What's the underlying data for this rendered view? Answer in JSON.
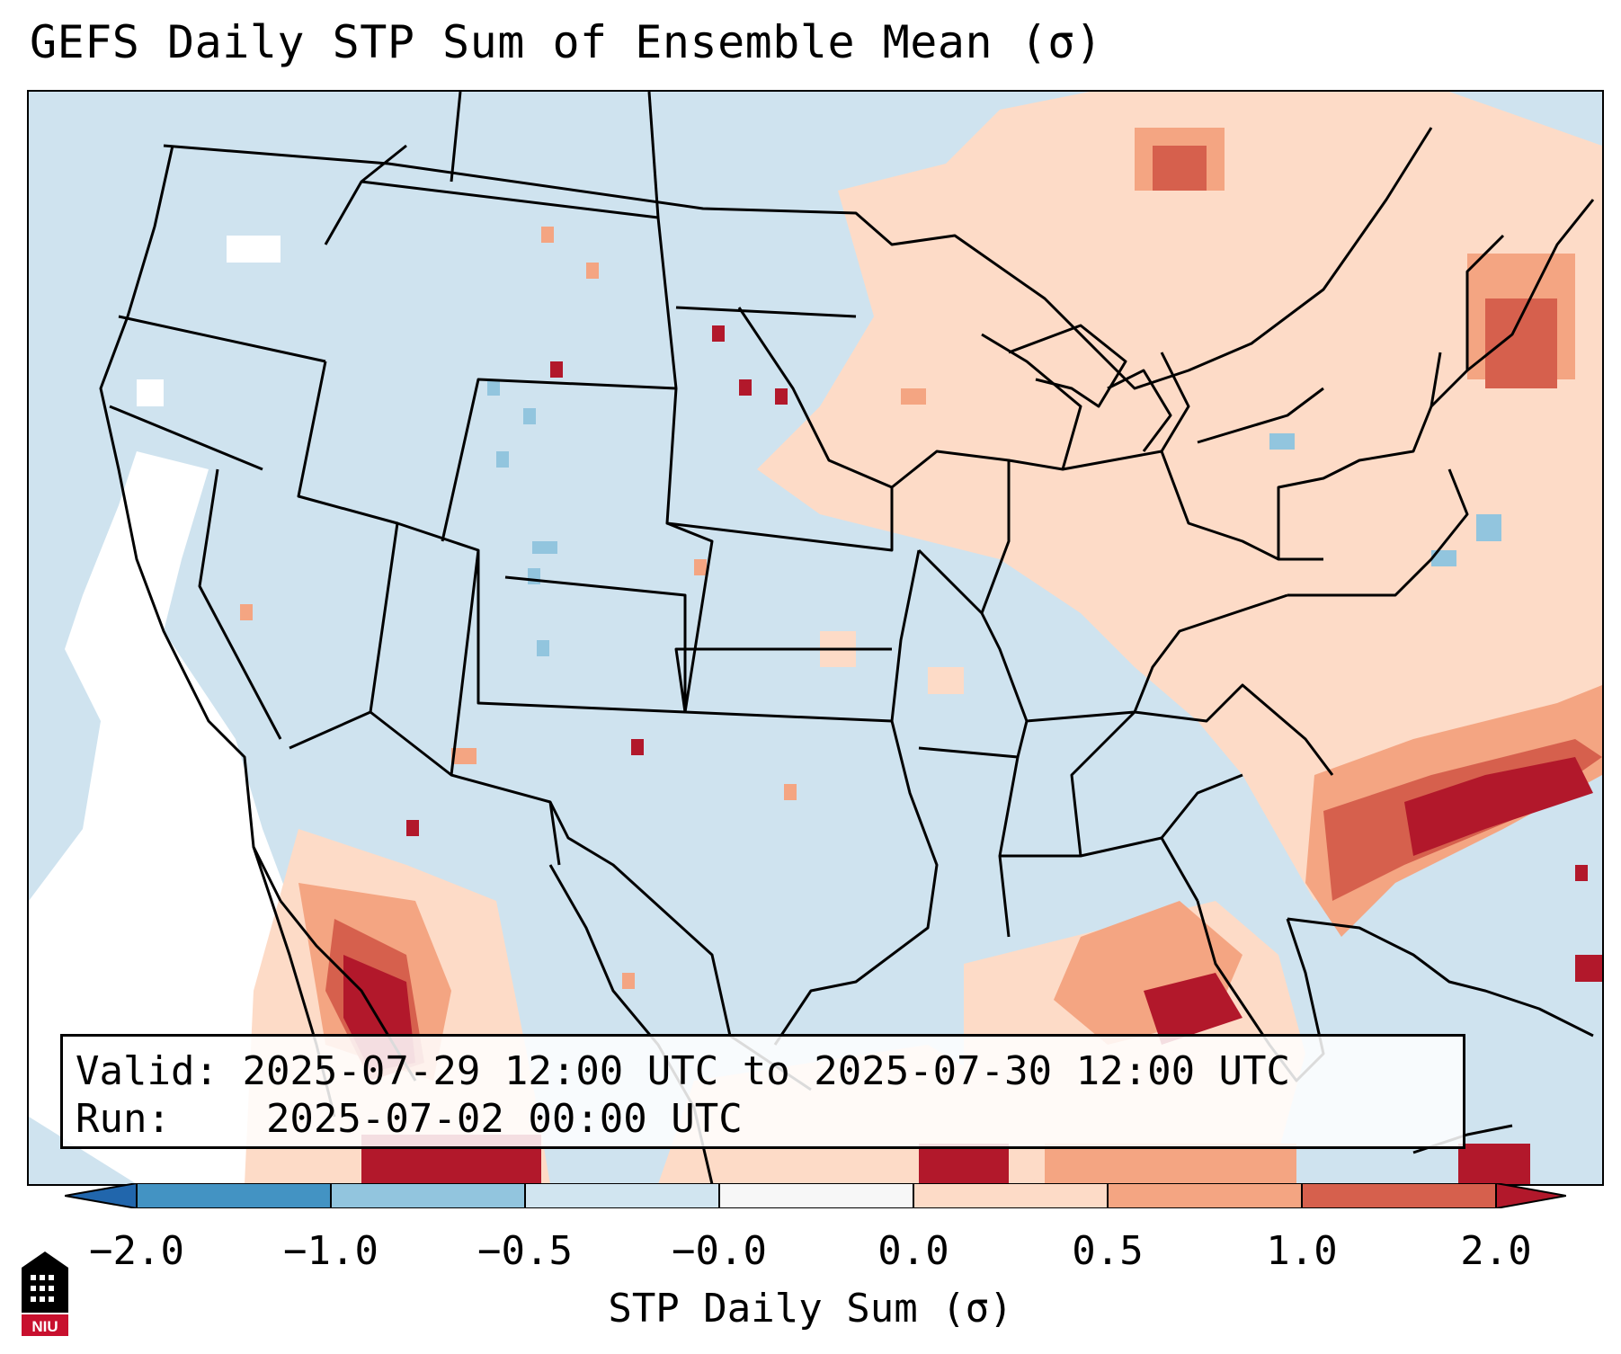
{
  "title": "GEFS Daily STP Sum of Ensemble Mean (σ)",
  "info": {
    "valid_label": "Valid:",
    "valid_value": "2025-07-29 12:00 UTC to 2025-07-30 12:00 UTC",
    "run_label": "Run:",
    "run_value": "2025-07-02 00:00 UTC"
  },
  "colorbar": {
    "label": "STP Daily Sum (σ)",
    "ticks": [
      "−2.0",
      "−1.0",
      "−0.5",
      "−0.0",
      "0.0",
      "0.5",
      "1.0",
      "2.0"
    ],
    "bins": [
      {
        "range": "< -2.0",
        "color": "#2166ac"
      },
      {
        "range": "-2.0 to -1.0",
        "color": "#4393c3"
      },
      {
        "range": "-1.0 to -0.5",
        "color": "#92c5de"
      },
      {
        "range": "-0.5 to -0.0",
        "color": "#d1e5f0"
      },
      {
        "range": "-0.0 to 0.0",
        "color": "#f7f7f7"
      },
      {
        "range": "0.0 to 0.5",
        "color": "#fddbc7"
      },
      {
        "range": "0.5 to 1.0",
        "color": "#f4a582"
      },
      {
        "range": "1.0 to 2.0",
        "color": "#d6604d"
      },
      {
        "range": "> 2.0",
        "color": "#b2182b"
      }
    ]
  },
  "map": {
    "region": "Contiguous United States, northern Mexico, Gulf of Mexico, western Atlantic",
    "background_color": "#cfe3ef",
    "no_data_color": "#ffffff"
  },
  "logo": {
    "text": "NIU",
    "colors": {
      "red": "#c8102e",
      "black": "#000000"
    }
  }
}
